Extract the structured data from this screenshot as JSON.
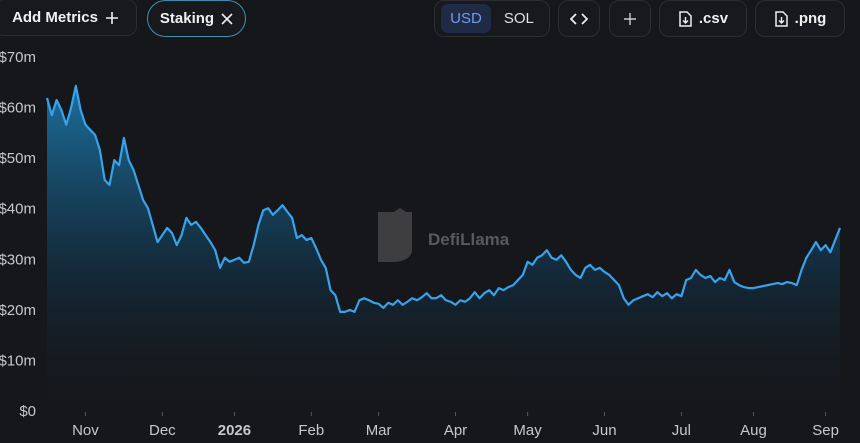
{
  "toolbar": {
    "add_metrics": "Add Metrics",
    "metric_chip": "Staking",
    "currency_options": [
      "USD",
      "SOL"
    ],
    "active_currency": "USD",
    "export_buttons": [
      ".csv",
      ".png"
    ]
  },
  "watermark": "DefiLlama",
  "chart_data": {
    "type": "area",
    "color": "#36a3ec",
    "ylim": [
      0,
      70
    ],
    "yticks": [
      {
        "value": 0,
        "label": "$0"
      },
      {
        "value": 10,
        "label": "$10m"
      },
      {
        "value": 20,
        "label": "$20m"
      },
      {
        "value": 30,
        "label": "$30m"
      },
      {
        "value": 40,
        "label": "$40m"
      },
      {
        "value": 50,
        "label": "$50m"
      },
      {
        "value": 60,
        "label": "$60m"
      },
      {
        "value": 70,
        "label": "$70m"
      }
    ],
    "categories": [
      null,
      null,
      null,
      null,
      null,
      null,
      null,
      null,
      "Nov",
      null,
      null,
      null,
      null,
      null,
      null,
      null,
      null,
      null,
      null,
      null,
      null,
      null,
      null,
      null,
      "Dec",
      null,
      null,
      null,
      null,
      null,
      null,
      null,
      null,
      null,
      null,
      null,
      null,
      null,
      null,
      "2026",
      null,
      null,
      null,
      null,
      null,
      null,
      null,
      null,
      null,
      null,
      null,
      null,
      null,
      null,
      null,
      "Feb",
      null,
      null,
      null,
      null,
      null,
      null,
      null,
      null,
      null,
      null,
      null,
      null,
      null,
      "Mar",
      null,
      null,
      null,
      null,
      null,
      null,
      null,
      null,
      null,
      null,
      null,
      null,
      null,
      null,
      null,
      "Apr",
      null,
      null,
      null,
      null,
      null,
      null,
      null,
      null,
      null,
      null,
      null,
      null,
      null,
      null,
      "May",
      null,
      null,
      null,
      null,
      null,
      null,
      null,
      null,
      null,
      null,
      null,
      null,
      null,
      null,
      null,
      "Jun",
      null,
      null,
      null,
      null,
      null,
      null,
      null,
      null,
      null,
      null,
      null,
      null,
      null,
      null,
      null,
      "Jul",
      null,
      null,
      null,
      null,
      null,
      null,
      null,
      null,
      null,
      null,
      null,
      null,
      null,
      null,
      "Aug",
      null,
      null,
      null,
      null,
      null,
      null,
      null,
      null,
      null,
      null,
      null,
      null,
      null,
      null,
      "Sep",
      null,
      null,
      null
    ],
    "values": [
      61.9,
      58.5,
      61.5,
      59.5,
      56.6,
      59.9,
      64.3,
      59.5,
      56.6,
      55.6,
      54.6,
      51.6,
      45.7,
      44.7,
      49.6,
      48.6,
      54.0,
      49.6,
      47.7,
      44.7,
      41.7,
      40.1,
      36.8,
      33.4,
      34.8,
      36.2,
      35.2,
      32.8,
      34.8,
      38.2,
      36.8,
      37.4,
      36.2,
      34.8,
      33.4,
      31.8,
      28.3,
      30.3,
      29.5,
      29.9,
      30.3,
      29.3,
      29.5,
      32.8,
      36.8,
      39.7,
      40.1,
      38.8,
      39.7,
      40.7,
      39.4,
      38.2,
      34.2,
      34.8,
      33.8,
      34.2,
      32.2,
      29.9,
      28.3,
      23.9,
      22.9,
      19.6,
      19.6,
      20.0,
      19.6,
      21.9,
      22.3,
      21.9,
      21.4,
      21.2,
      20.4,
      21.4,
      21.0,
      21.9,
      21.0,
      21.6,
      22.3,
      21.9,
      22.5,
      23.3,
      22.3,
      22.3,
      22.9,
      21.9,
      21.6,
      21.0,
      21.9,
      21.6,
      22.3,
      23.5,
      22.3,
      23.3,
      23.9,
      22.9,
      24.3,
      23.9,
      24.5,
      24.9,
      25.9,
      26.9,
      29.5,
      28.9,
      30.3,
      30.8,
      31.8,
      30.3,
      29.9,
      30.8,
      29.5,
      27.9,
      26.9,
      26.3,
      28.3,
      28.9,
      27.9,
      28.3,
      27.5,
      26.9,
      25.9,
      24.9,
      22.3,
      21.0,
      21.9,
      22.3,
      22.7,
      23.1,
      22.5,
      23.5,
      22.7,
      23.3,
      22.3,
      23.1,
      22.7,
      25.9,
      26.3,
      27.9,
      26.9,
      26.3,
      26.7,
      25.5,
      26.3,
      25.9,
      27.9,
      25.5,
      24.9,
      24.5,
      24.3,
      24.3,
      24.5,
      24.7,
      24.9,
      25.1,
      25.3,
      25.1,
      25.5,
      25.3,
      24.9,
      27.9,
      30.3,
      31.8,
      33.4,
      31.8,
      32.8,
      31.4,
      33.8,
      36.2
    ]
  }
}
